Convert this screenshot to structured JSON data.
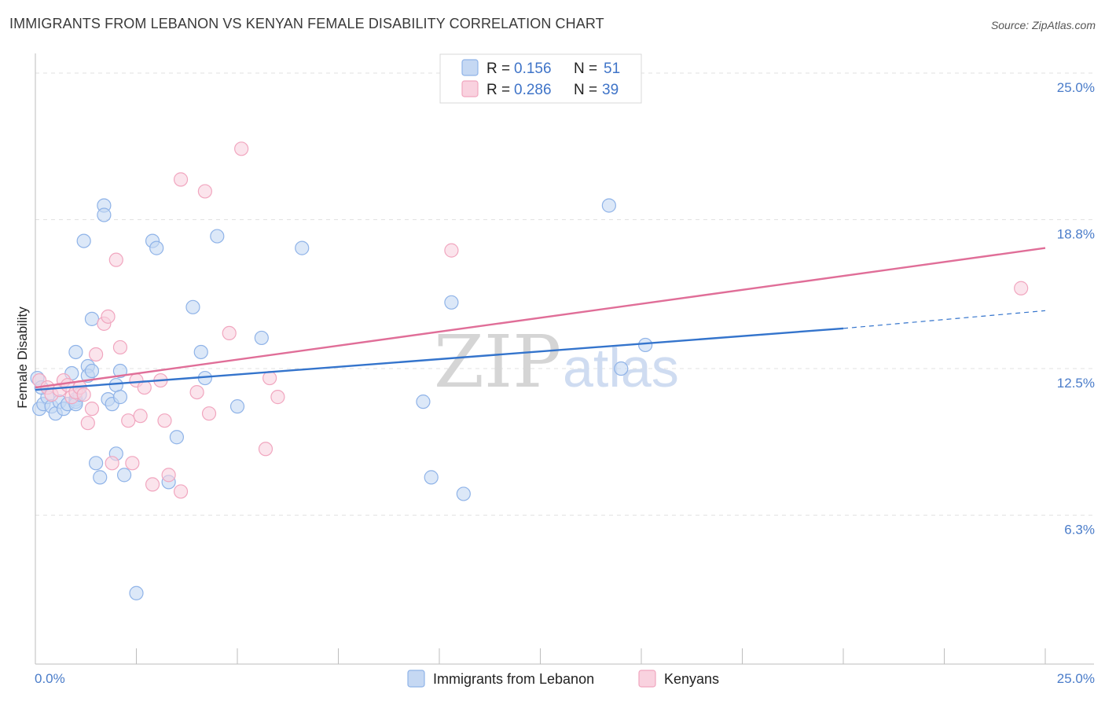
{
  "chart_data": {
    "type": "scatter",
    "title": "IMMIGRANTS FROM LEBANON VS KENYAN FEMALE DISABILITY CORRELATION CHART",
    "source": "Source: ZipAtlas.com",
    "xlabel": "",
    "ylabel": "Female Disability",
    "xlim": [
      0,
      25
    ],
    "ylim": [
      0,
      25.5
    ],
    "x_tick_labels": [
      "0.0%",
      "25.0%"
    ],
    "y_ticks": [
      {
        "value": 6.3,
        "label": "6.3%"
      },
      {
        "value": 12.5,
        "label": "12.5%"
      },
      {
        "value": 18.8,
        "label": "18.8%"
      },
      {
        "value": 25.0,
        "label": "25.0%"
      }
    ],
    "watermark": {
      "zip": "ZIP",
      "atlas": "atlas"
    },
    "legend": [
      {
        "r_label": "R =",
        "r_value": "0.156",
        "n_label": "N =",
        "n_value": "51"
      },
      {
        "r_label": "R =",
        "r_value": "0.286",
        "n_label": "N =",
        "n_value": "39"
      }
    ],
    "series": [
      {
        "name": "Immigrants from Lebanon",
        "color": "#8fb3e8",
        "fill": "#c5d8f3",
        "line_color": "#3474cc",
        "trend": {
          "x0": 0,
          "y0": 11.6,
          "x1": 20.0,
          "y1": 14.2,
          "dash_to_x": 25,
          "dash_to_y": 14.95
        },
        "points": [
          [
            0.1,
            10.8
          ],
          [
            0.2,
            11.0
          ],
          [
            0.3,
            11.3
          ],
          [
            0.4,
            10.9
          ],
          [
            0.5,
            10.6
          ],
          [
            0.6,
            11.1
          ],
          [
            0.7,
            10.8
          ],
          [
            0.8,
            11.0
          ],
          [
            0.9,
            12.3
          ],
          [
            1.0,
            11.2
          ],
          [
            1.0,
            13.2
          ],
          [
            1.0,
            11.1
          ],
          [
            1.0,
            11.0
          ],
          [
            1.1,
            11.4
          ],
          [
            1.2,
            17.9
          ],
          [
            1.3,
            12.6
          ],
          [
            1.3,
            12.2
          ],
          [
            1.4,
            12.4
          ],
          [
            1.4,
            14.6
          ],
          [
            1.5,
            8.5
          ],
          [
            1.6,
            7.9
          ],
          [
            1.7,
            19.4
          ],
          [
            1.7,
            19.0
          ],
          [
            1.8,
            11.2
          ],
          [
            1.9,
            11.0
          ],
          [
            2.0,
            11.8
          ],
          [
            2.0,
            8.9
          ],
          [
            2.1,
            11.3
          ],
          [
            2.1,
            12.4
          ],
          [
            2.2,
            8.0
          ],
          [
            2.5,
            3.0
          ],
          [
            2.9,
            17.9
          ],
          [
            3.0,
            17.6
          ],
          [
            3.3,
            7.7
          ],
          [
            3.5,
            9.6
          ],
          [
            3.9,
            15.1
          ],
          [
            4.1,
            13.2
          ],
          [
            4.2,
            12.1
          ],
          [
            4.5,
            18.1
          ],
          [
            5.0,
            10.9
          ],
          [
            5.6,
            13.8
          ],
          [
            6.6,
            17.6
          ],
          [
            9.6,
            11.1
          ],
          [
            9.8,
            7.9
          ],
          [
            10.3,
            15.3
          ],
          [
            10.6,
            7.2
          ],
          [
            14.2,
            19.4
          ],
          [
            14.5,
            12.5
          ],
          [
            15.1,
            13.5
          ],
          [
            0.05,
            12.1
          ],
          [
            0.15,
            11.7
          ]
        ]
      },
      {
        "name": "Kenyans",
        "color": "#f1a6bf",
        "fill": "#f9d2df",
        "line_color": "#e06e98",
        "trend": {
          "x0": 0,
          "y0": 11.7,
          "x1": 25,
          "y1": 17.6
        },
        "points": [
          [
            0.1,
            12.0
          ],
          [
            0.3,
            11.7
          ],
          [
            0.4,
            11.4
          ],
          [
            0.6,
            11.6
          ],
          [
            0.7,
            12.0
          ],
          [
            0.8,
            11.8
          ],
          [
            0.9,
            11.3
          ],
          [
            1.0,
            11.5
          ],
          [
            1.1,
            11.7
          ],
          [
            1.2,
            11.4
          ],
          [
            1.3,
            10.2
          ],
          [
            1.4,
            10.8
          ],
          [
            1.5,
            13.1
          ],
          [
            1.7,
            14.4
          ],
          [
            1.8,
            14.7
          ],
          [
            1.9,
            8.5
          ],
          [
            2.0,
            17.1
          ],
          [
            2.1,
            13.4
          ],
          [
            2.3,
            10.3
          ],
          [
            2.4,
            8.5
          ],
          [
            2.5,
            12.0
          ],
          [
            2.6,
            10.5
          ],
          [
            2.7,
            11.7
          ],
          [
            2.9,
            7.6
          ],
          [
            3.1,
            12.0
          ],
          [
            3.2,
            10.3
          ],
          [
            3.3,
            8.0
          ],
          [
            3.6,
            7.3
          ],
          [
            3.6,
            20.5
          ],
          [
            4.0,
            11.5
          ],
          [
            4.2,
            20.0
          ],
          [
            4.3,
            10.6
          ],
          [
            4.8,
            14.0
          ],
          [
            5.1,
            21.8
          ],
          [
            5.7,
            9.1
          ],
          [
            5.8,
            12.1
          ],
          [
            6.0,
            11.3
          ],
          [
            10.3,
            17.5
          ],
          [
            24.4,
            15.9
          ]
        ]
      }
    ]
  }
}
